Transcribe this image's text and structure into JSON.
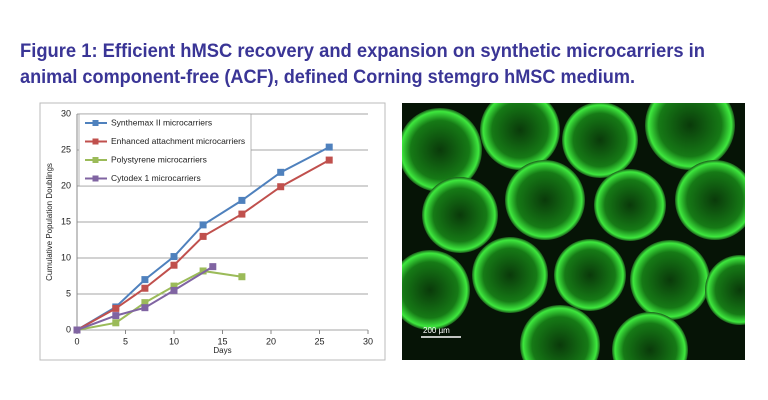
{
  "figure_title_lines": [
    "Figure 1: Efficient hMSC recovery and expansion on synthetic microcarriers in",
    "animal component-free (ACF), defined Corning stemgro hMSC medium."
  ],
  "chart_data": {
    "type": "line",
    "x_label": "Days",
    "y_label": "Cumulative Population Doublings",
    "xlim": [
      0,
      30
    ],
    "xticks": [
      0,
      5,
      10,
      15,
      20,
      25,
      30
    ],
    "ylim": [
      0,
      30
    ],
    "yticks": [
      0,
      5,
      10,
      15,
      20,
      25,
      30
    ],
    "grid": true,
    "legend": "top-left",
    "series": [
      {
        "name": "Synthemax II microcarriers",
        "color": "#4f81bd",
        "x": [
          0,
          4,
          7,
          10,
          13,
          17,
          21,
          26
        ],
        "values": [
          0,
          3.2,
          7,
          10.2,
          14.6,
          18,
          21.9,
          25.4
        ]
      },
      {
        "name": "Enhanced attachment microcarriers",
        "color": "#c0504d",
        "x": [
          0,
          4,
          7,
          10,
          13,
          17,
          21,
          26
        ],
        "values": [
          0,
          3,
          5.8,
          9,
          13,
          16.1,
          19.9,
          23.6
        ]
      },
      {
        "name": "Polystyrene microcarriers",
        "color": "#9bbb59",
        "x": [
          0,
          4,
          7,
          10,
          13,
          17
        ],
        "values": [
          0,
          1,
          3.8,
          6.1,
          8.2,
          7.4
        ]
      },
      {
        "name": "Cytodex 1 microcarriers",
        "color": "#8064a2",
        "x": [
          0,
          4,
          7,
          10,
          14
        ],
        "values": [
          0,
          2,
          3.1,
          5.5,
          8.8
        ]
      }
    ]
  },
  "image": {
    "scale_bar_label": "200 µm"
  }
}
